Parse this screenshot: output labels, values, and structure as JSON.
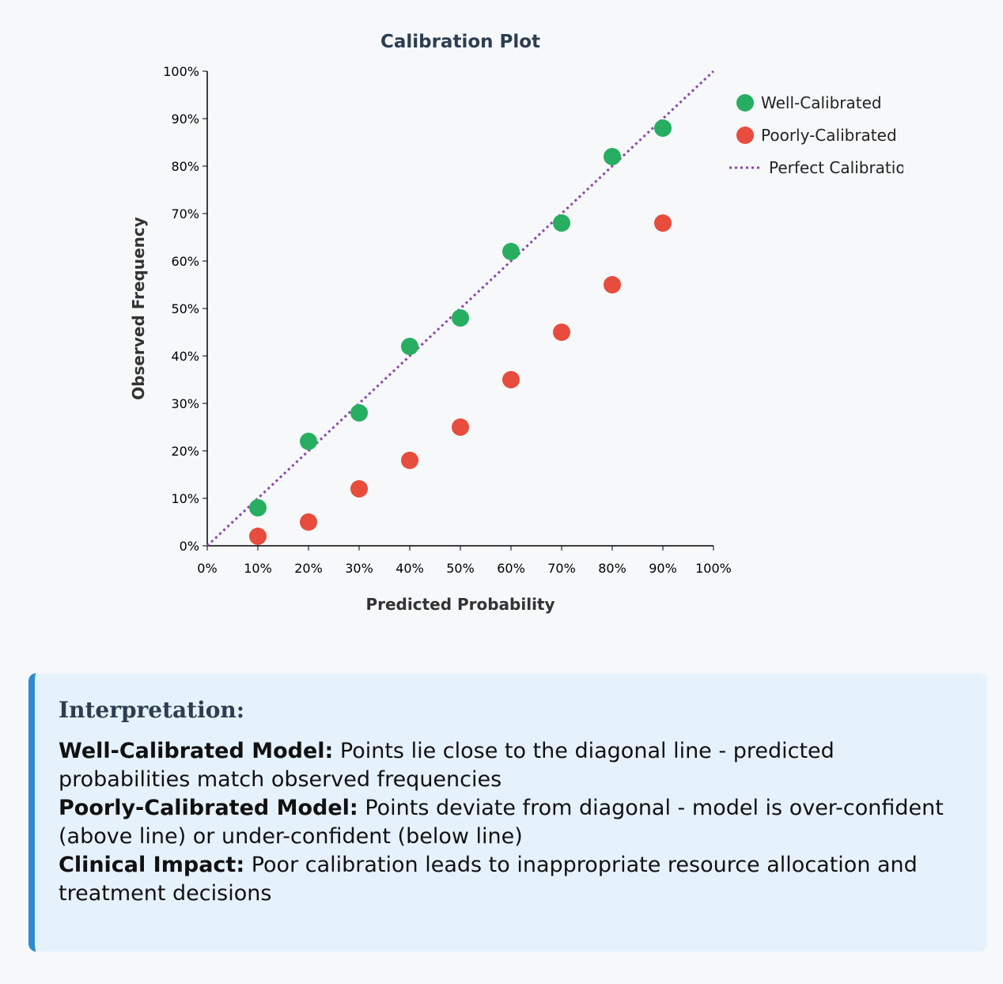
{
  "chart_data": {
    "type": "scatter",
    "title": "Calibration Plot",
    "xlabel": "Predicted Probability",
    "ylabel": "Observed Frequency",
    "xlim": [
      0,
      100
    ],
    "ylim": [
      0,
      100
    ],
    "x_ticks": [
      "0%",
      "10%",
      "20%",
      "30%",
      "40%",
      "50%",
      "60%",
      "70%",
      "80%",
      "90%",
      "100%"
    ],
    "y_ticks": [
      "0%",
      "10%",
      "20%",
      "30%",
      "40%",
      "50%",
      "60%",
      "70%",
      "80%",
      "90%",
      "100%"
    ],
    "grid": false,
    "legend_position": "top-right",
    "series": [
      {
        "name": "Well-Calibrated",
        "color": "#27ae60",
        "x": [
          10,
          20,
          30,
          40,
          50,
          60,
          70,
          80,
          90
        ],
        "y": [
          8,
          22,
          28,
          42,
          48,
          62,
          68,
          82,
          88
        ]
      },
      {
        "name": "Poorly-Calibrated",
        "color": "#e74c3c",
        "x": [
          10,
          20,
          30,
          40,
          50,
          60,
          70,
          80,
          90
        ],
        "y": [
          2,
          5,
          12,
          18,
          25,
          35,
          45,
          55,
          68
        ]
      }
    ],
    "reference_line": {
      "name": "Perfect Calibration",
      "color": "#8e44ad",
      "style": "dotted",
      "x": [
        0,
        100
      ],
      "y": [
        0,
        100
      ]
    }
  },
  "interpretation": {
    "title": "Interpretation:",
    "items": [
      {
        "label": "Well-Calibrated Model:",
        "text": " Points lie close to the diagonal line - predicted probabilities match observed frequencies"
      },
      {
        "label": "Poorly-Calibrated Model:",
        "text": " Points deviate from diagonal - model is over-confident (above line) or under-confident (below line)"
      },
      {
        "label": "Clinical Impact:",
        "text": " Poor calibration leads to inappropriate resource allocation and treatment decisions"
      }
    ]
  }
}
